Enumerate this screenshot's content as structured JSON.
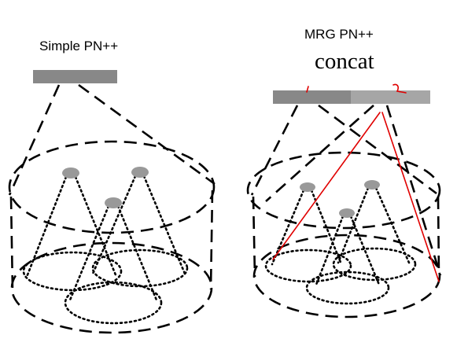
{
  "left_panel": {
    "title": "Simple PN++"
  },
  "right_panel": {
    "title": "MRG PN++",
    "subtitle": "concat"
  },
  "colors": {
    "feature_bar": "#888888",
    "feature_bar_light": "#a6a6a6",
    "centroid": "#999999",
    "dash_stroke": "#000000",
    "annotation": "#e00000"
  },
  "icons": {
    "centroid": "filled-ellipse",
    "region": "dashed-ellipse"
  }
}
